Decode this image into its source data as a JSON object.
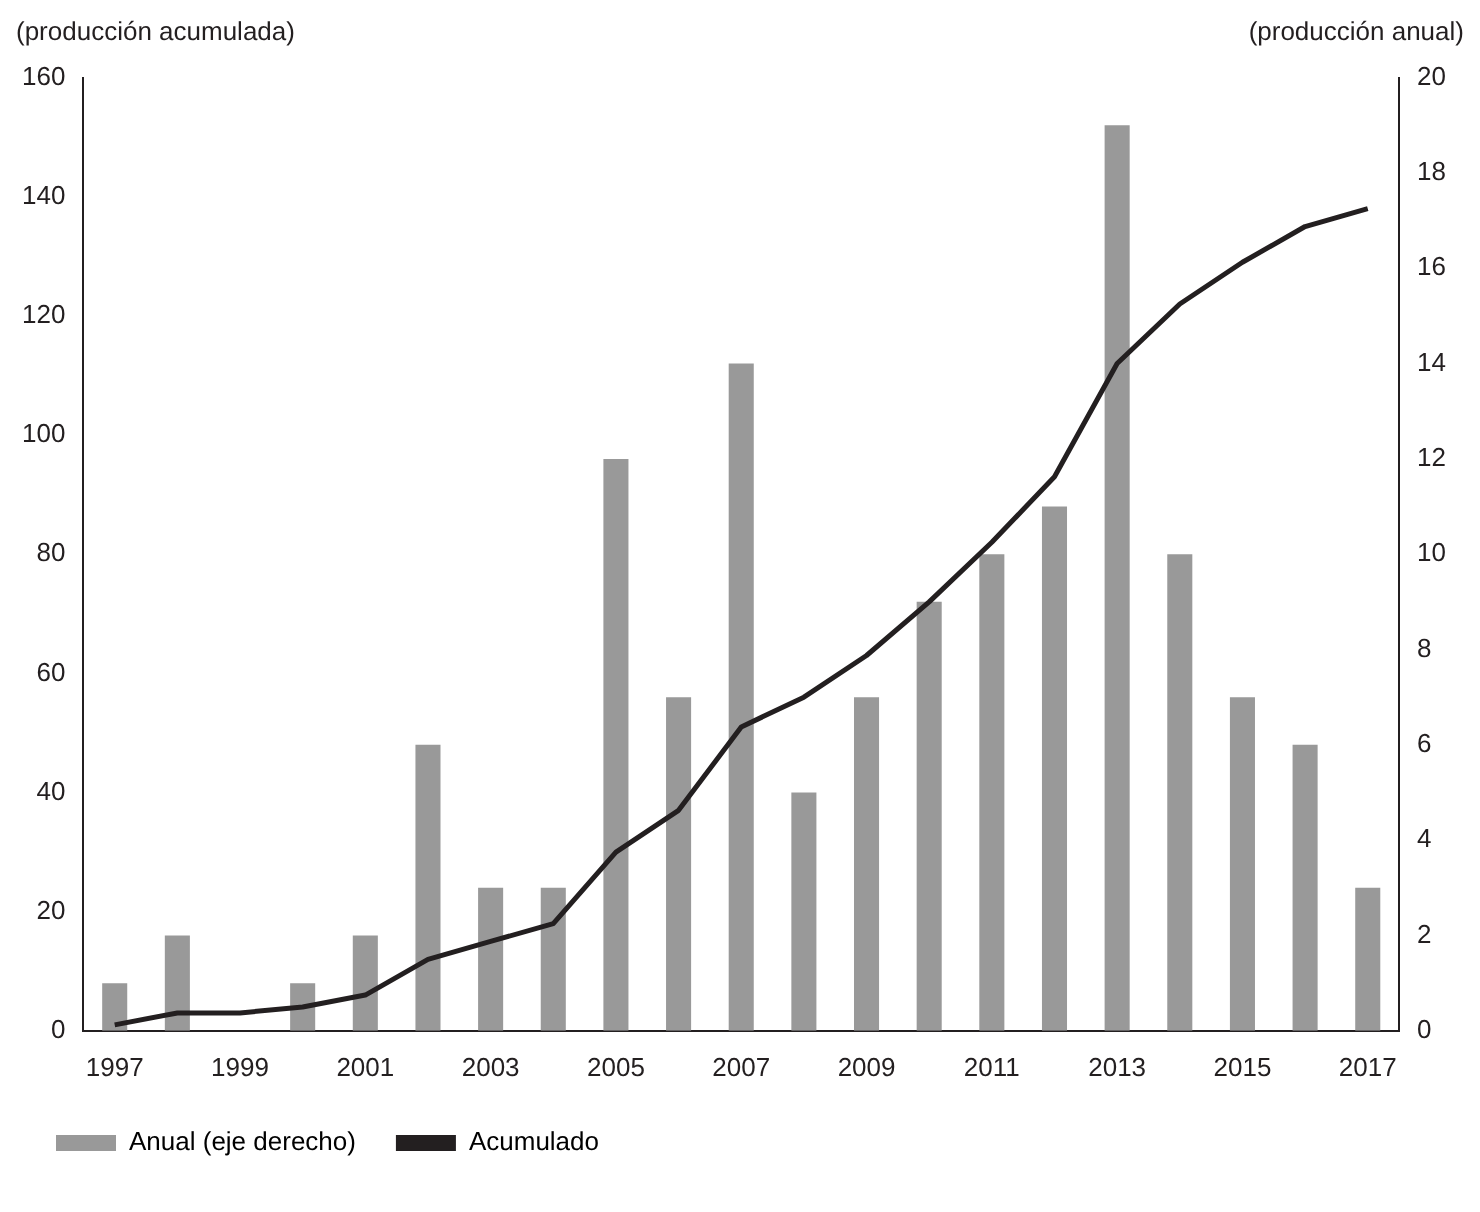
{
  "chart_data": {
    "type": "bar",
    "ylabel": "(producción acumulada)",
    "y2label": "(producción anual)",
    "categories": [
      "1997",
      null,
      "1999",
      null,
      "2001",
      null,
      "2003",
      null,
      "2005",
      null,
      "2007",
      null,
      "2009",
      null,
      "2011",
      null,
      "2013",
      null,
      "2015",
      null,
      "2017"
    ],
    "series": [
      {
        "name": "Anual (eje derecho)",
        "axis": "y2",
        "color": "#999999",
        "values": [
          1,
          2,
          0,
          1,
          2,
          6,
          3,
          3,
          12,
          7,
          14,
          5,
          7,
          9,
          10,
          11,
          19,
          10,
          7,
          6,
          3
        ]
      },
      {
        "name": "Acumulado",
        "type": "line",
        "axis": "y",
        "color": "#231f20",
        "values": [
          1,
          3,
          3,
          4,
          6,
          12,
          15,
          18,
          30,
          37,
          51,
          56,
          63,
          72,
          82,
          93,
          112,
          122,
          129,
          135,
          138
        ]
      }
    ],
    "ylim": [
      0,
      160
    ],
    "yticks": [
      0,
      20,
      40,
      60,
      80,
      100,
      120,
      140,
      160
    ],
    "y2lim": [
      0,
      20
    ],
    "y2ticks": [
      0,
      2,
      4,
      6,
      8,
      10,
      12,
      14,
      16,
      18,
      20
    ],
    "grid": false,
    "legend": "bottom",
    "marker": "none",
    "line_style": "solid"
  }
}
